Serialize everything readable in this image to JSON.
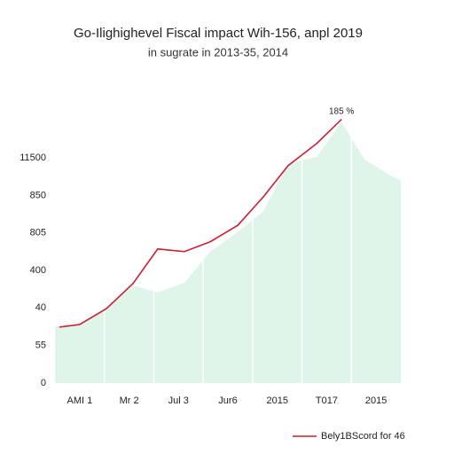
{
  "chart_data": {
    "type": "line",
    "title": "Go-Ilighighevel Fiscal impact Wih-156, anpl 2019",
    "subtitle": "in sugrate in 2013-35, 2014",
    "categories": [
      "AMI 1",
      "Mr 2",
      "Jul 3",
      "Jur6",
      "2015",
      "T017",
      "2015"
    ],
    "y_axis_labels": [
      "0",
      "55",
      "40",
      "400",
      "805",
      "850",
      "11500"
    ],
    "xlim": [
      0,
      7
    ],
    "ylim": [
      0,
      7.2
    ],
    "annotation": "185 %",
    "series": [
      {
        "type": "area",
        "color": "#dff5ea",
        "x": [
          0,
          0.5,
          1.04,
          1.58,
          2.08,
          2.62,
          3.14,
          3.7,
          4.22,
          4.72,
          5.3,
          5.8,
          6.27,
          6.79,
          7
        ],
        "values": [
          1.51,
          1.56,
          1.98,
          2.6,
          2.41,
          2.67,
          3.5,
          4.02,
          4.58,
          5.84,
          6.02,
          6.95,
          5.95,
          5.53,
          5.39
        ]
      },
      {
        "type": "line",
        "name": "Bely1BScord for 46",
        "color": "#cc1f2f",
        "x": [
          0.09,
          0.5,
          1.04,
          1.58,
          2.08,
          2.62,
          3.14,
          3.7,
          4.22,
          4.72,
          5.3,
          5.8
        ],
        "values": [
          1.49,
          1.56,
          1.98,
          2.65,
          3.57,
          3.5,
          3.76,
          4.2,
          4.96,
          5.79,
          6.38,
          7.02
        ]
      }
    ],
    "legend": "bottom-right"
  }
}
